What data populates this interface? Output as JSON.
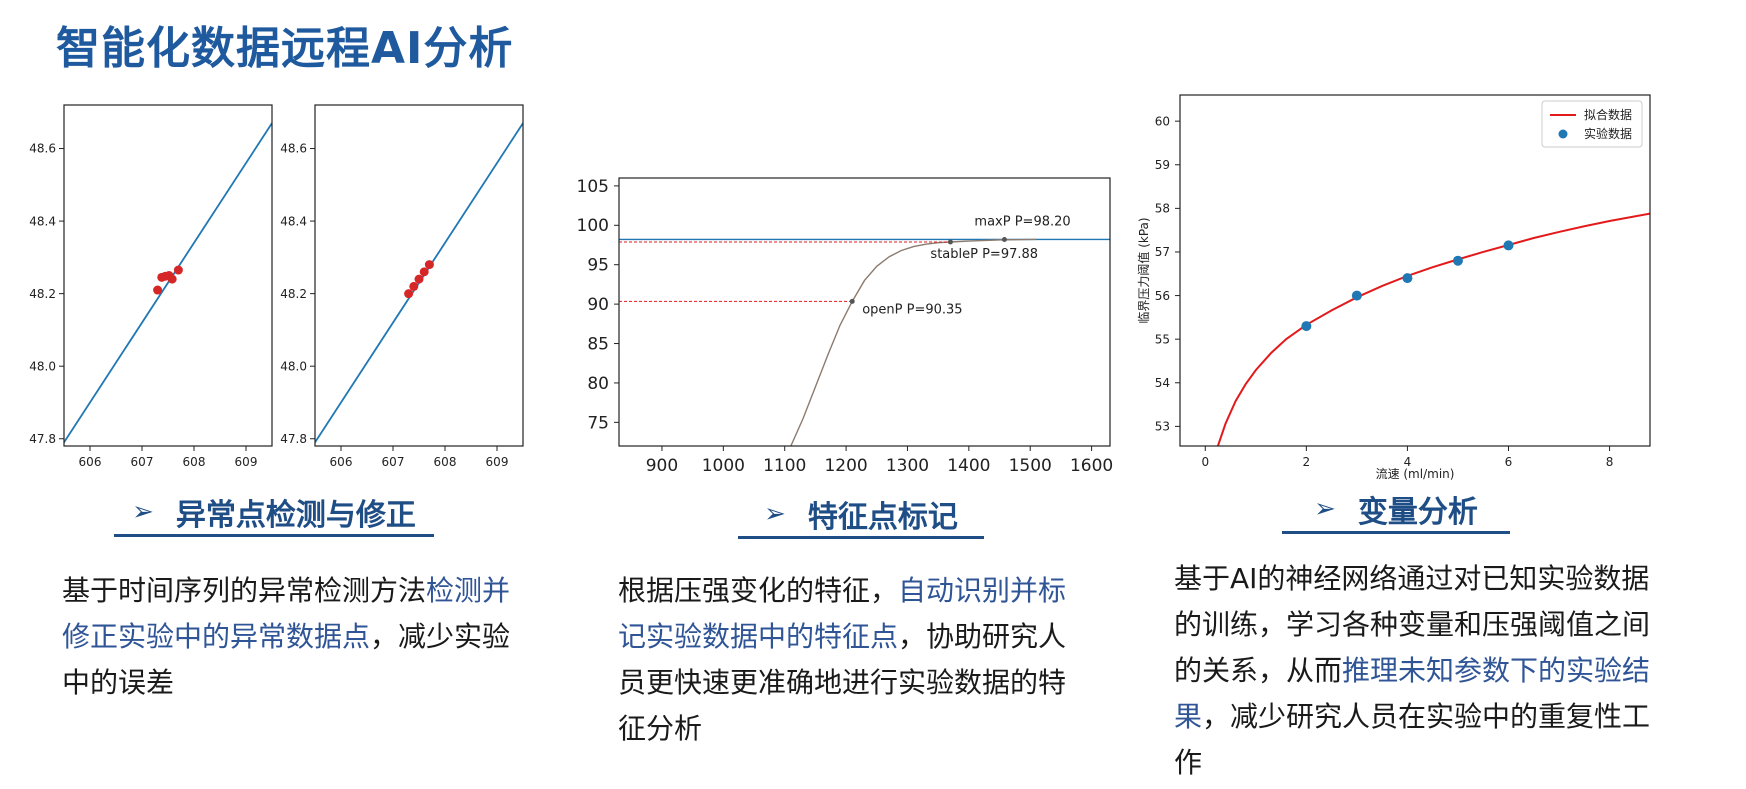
{
  "page": {
    "title": "智能化数据远程AI分析"
  },
  "sections": [
    {
      "heading": "异常点检测与修正",
      "description": [
        {
          "text": "基于时间序列的异常检测方法",
          "highlight": false
        },
        {
          "text": "检测并修正实验中的异常数据点",
          "highlight": true
        },
        {
          "text": "，减少实验中的误差",
          "highlight": false
        }
      ]
    },
    {
      "heading": "特征点标记",
      "description": [
        {
          "text": "根据压强变化的特征，",
          "highlight": false
        },
        {
          "text": "自动识别并标记实验数据中的特征点",
          "highlight": true
        },
        {
          "text": "，协助研究人员更快速更准确地进行实验数据的特征分析",
          "highlight": false
        }
      ]
    },
    {
      "heading": "变量分析",
      "description": [
        {
          "text": "基于AI的神经网络通过对已知实验数据的训练，学习各种变量和压强阈值之间的关系，从而",
          "highlight": false
        },
        {
          "text": "推理未知参数下的实验结果",
          "highlight": true
        },
        {
          "text": "，减少研究人员在实验中的重复性工作",
          "highlight": false
        }
      ]
    }
  ],
  "colors": {
    "title": "#1f5a9e",
    "heading": "#1f4e86",
    "highlight": "#2f5597",
    "line": "#1f77b4",
    "outlier": "#d62728",
    "fit": "#e31a1c"
  },
  "chart_data": [
    {
      "type": "line",
      "xlim": [
        605.5,
        609.5
      ],
      "ylim": [
        47.78,
        48.72
      ],
      "x_ticks": [
        606,
        607,
        608,
        609
      ],
      "x_tick_labels": [
        "606",
        "607",
        "608",
        "609"
      ],
      "y_ticks": [
        47.8,
        48.0,
        48.2,
        48.4,
        48.6
      ],
      "y_tick_labels": [
        "47.8",
        "48.0",
        "48.2",
        "48.4",
        "48.6"
      ],
      "series": [
        {
          "kind": "line",
          "x": [
            605.5,
            609.5
          ],
          "y": [
            47.79,
            48.67
          ]
        },
        {
          "kind": "scatter",
          "x": [
            607.3,
            607.38,
            607.45,
            607.52,
            607.58,
            607.7
          ],
          "y": [
            48.21,
            48.245,
            48.248,
            48.25,
            48.24,
            48.265
          ]
        }
      ]
    },
    {
      "type": "line",
      "xlim": [
        605.5,
        609.5
      ],
      "ylim": [
        47.78,
        48.72
      ],
      "x_ticks": [
        606,
        607,
        608,
        609
      ],
      "x_tick_labels": [
        "606",
        "607",
        "608",
        "609"
      ],
      "y_ticks": [
        47.8,
        48.0,
        48.2,
        48.4,
        48.6
      ],
      "y_tick_labels": [
        "47.8",
        "48.0",
        "48.2",
        "48.4",
        "48.6"
      ],
      "series": [
        {
          "kind": "line",
          "x": [
            605.5,
            609.5
          ],
          "y": [
            47.79,
            48.67
          ]
        },
        {
          "kind": "scatter",
          "x": [
            607.3,
            607.4,
            607.5,
            607.6,
            607.7
          ],
          "y": [
            48.2,
            48.22,
            48.24,
            48.26,
            48.28
          ]
        }
      ]
    },
    {
      "type": "line",
      "xlim": [
        830,
        1630
      ],
      "ylim": [
        72,
        106
      ],
      "x_ticks": [
        900,
        1000,
        1100,
        1200,
        1300,
        1400,
        1500,
        1600
      ],
      "x_tick_labels": [
        "900",
        "1000",
        "1100",
        "1200",
        "1300",
        "1400",
        "1500",
        "1600"
      ],
      "y_ticks": [
        75,
        80,
        85,
        90,
        95,
        100,
        105
      ],
      "y_tick_labels": [
        "75",
        "80",
        "85",
        "90",
        "95",
        "100",
        "105"
      ],
      "horizontal_line": 98.2,
      "curve": {
        "x": [
          1110,
          1130,
          1150,
          1170,
          1190,
          1210,
          1230,
          1250,
          1270,
          1290,
          1310,
          1330,
          1350,
          1370,
          1400,
          1450,
          1510
        ],
        "y": [
          72,
          75.5,
          79.5,
          83.5,
          87.3,
          90.35,
          93,
          94.8,
          96,
          96.8,
          97.3,
          97.6,
          97.8,
          97.88,
          98.0,
          98.15,
          98.2
        ]
      },
      "points": [
        {
          "label": "maxP P=98.20",
          "x": 1458,
          "y": 98.2
        },
        {
          "label": "stableP P=97.88",
          "x": 1370,
          "y": 97.88
        },
        {
          "label": "openP P=90.35",
          "x": 1210,
          "y": 90.35
        }
      ]
    },
    {
      "type": "line",
      "xlabel": "流速 (ml/min)",
      "ylabel": "临界压力阈值 (kPa)",
      "xlim": [
        -0.5,
        8.8
      ],
      "ylim": [
        52.55,
        60.6
      ],
      "x_ticks": [
        0,
        2,
        4,
        6,
        8
      ],
      "x_tick_labels": [
        "0",
        "2",
        "4",
        "6",
        "8"
      ],
      "y_ticks": [
        53,
        54,
        55,
        56,
        57,
        58,
        59,
        60
      ],
      "y_tick_labels": [
        "53",
        "54",
        "55",
        "56",
        "57",
        "58",
        "59",
        "60"
      ],
      "legend": {
        "position": "upper right",
        "entries": [
          "拟合数据",
          "实验数据"
        ]
      },
      "series": [
        {
          "name": "拟合数据",
          "kind": "line",
          "x": [
            0.25,
            0.4,
            0.6,
            0.8,
            1,
            1.3,
            1.6,
            2,
            2.5,
            3,
            3.5,
            4,
            4.5,
            5,
            5.5,
            6,
            6.5,
            7,
            7.5,
            8,
            8.8
          ],
          "y": [
            52.55,
            53.06,
            53.58,
            53.97,
            54.29,
            54.68,
            55.0,
            55.33,
            55.66,
            55.96,
            56.22,
            56.45,
            56.65,
            56.83,
            57.0,
            57.16,
            57.32,
            57.46,
            57.59,
            57.71,
            57.88
          ]
        },
        {
          "name": "实验数据",
          "kind": "scatter",
          "x": [
            2,
            3,
            4,
            5,
            6
          ],
          "y": [
            55.3,
            56.0,
            56.4,
            56.8,
            57.15
          ]
        }
      ]
    }
  ]
}
